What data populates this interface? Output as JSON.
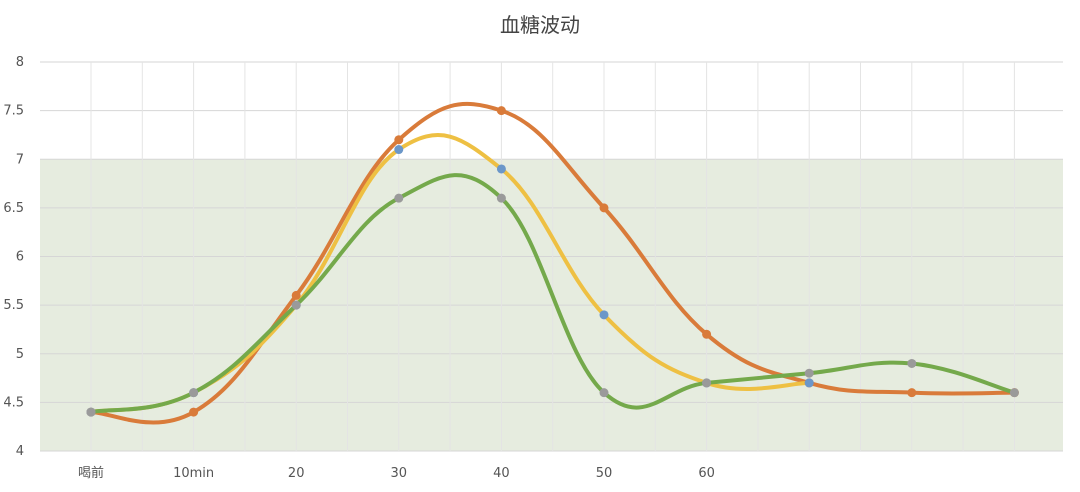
{
  "chart_data": {
    "type": "line",
    "title": "血糖波动",
    "xlabel": "",
    "ylabel": "",
    "categories": [
      "喝前",
      "10min",
      "20",
      "30",
      "40",
      "50",
      "60",
      "",
      "",
      ""
    ],
    "yticks": [
      "4",
      "4.5",
      "5",
      "5.5",
      "6",
      "6.5",
      "7",
      "7.5",
      "8"
    ],
    "ylim": [
      4,
      8
    ],
    "grid": true,
    "smooth": true,
    "shaded_band": {
      "from": 4,
      "to": 7,
      "color": "#e6ecdf"
    },
    "series": [
      {
        "color": "#d97b3a",
        "marker_color": "#d97b3a",
        "values": [
          4.4,
          4.4,
          5.6,
          7.2,
          7.5,
          6.5,
          5.2,
          4.7,
          4.6,
          4.6
        ]
      },
      {
        "color": "#eec043",
        "marker_color": "#6b97c9",
        "values": [
          4.4,
          4.6,
          5.5,
          7.1,
          6.9,
          5.4,
          4.7,
          4.7,
          null,
          null
        ]
      },
      {
        "color": "#74a94b",
        "marker_color": "#9a9a9a",
        "values": [
          4.4,
          4.6,
          5.5,
          6.6,
          6.6,
          4.6,
          4.7,
          4.8,
          4.9,
          4.6
        ]
      }
    ]
  }
}
